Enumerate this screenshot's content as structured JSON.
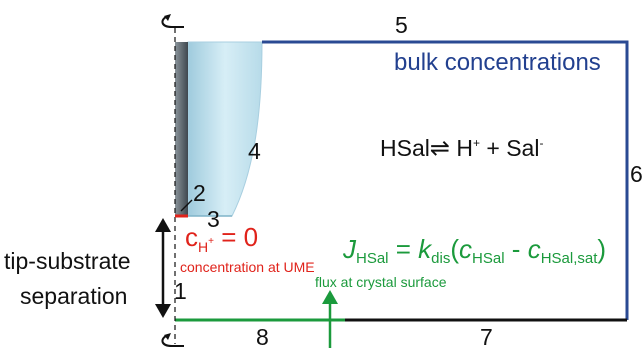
{
  "boundary_numbers": {
    "b1": "1",
    "b2": "2",
    "b3": "3",
    "b4": "4",
    "b5": "5",
    "b6": "6",
    "b7": "7",
    "b8": "8"
  },
  "labels": {
    "bulk": "bulk concentrations",
    "tip_substrate_line1": "tip-substrate",
    "tip_substrate_line2": "separation",
    "concentration_at_ume": "concentration at UME",
    "flux_at_crystal": "flux at crystal surface"
  },
  "equilibrium": {
    "left": "HSal",
    "arrow": "⇌",
    "right_h": "H",
    "right_h_charge": "+",
    "plus": "+",
    "right_sal": "Sal",
    "right_sal_charge": "-"
  },
  "ume_condition": {
    "symbol": "c",
    "subscript": "H",
    "subscript_charge": "+",
    "rhs": "= 0"
  },
  "flux_equation": {
    "J": "J",
    "J_sub": "HSal",
    "equals": "=",
    "k": "k",
    "k_sub": "dis",
    "open": "(",
    "c1": "c",
    "c1_sub": "HSal",
    "minus": "-",
    "c2": "c",
    "c2_sub": "HSal,sat",
    "close": ")"
  },
  "colors": {
    "domain_border": "#2a4a93",
    "substrate_edge": "#111111",
    "crystal_edge": "#1b9a3c",
    "ume_edge": "#e0231b",
    "tip_glass": "#bfe0ec",
    "tip_metal": "#5f6a72"
  },
  "icons": [
    "rotation-axis-icon",
    "rotation-axis-icon-bottom",
    "double-arrow-icon",
    "flux-arrow-icon"
  ]
}
